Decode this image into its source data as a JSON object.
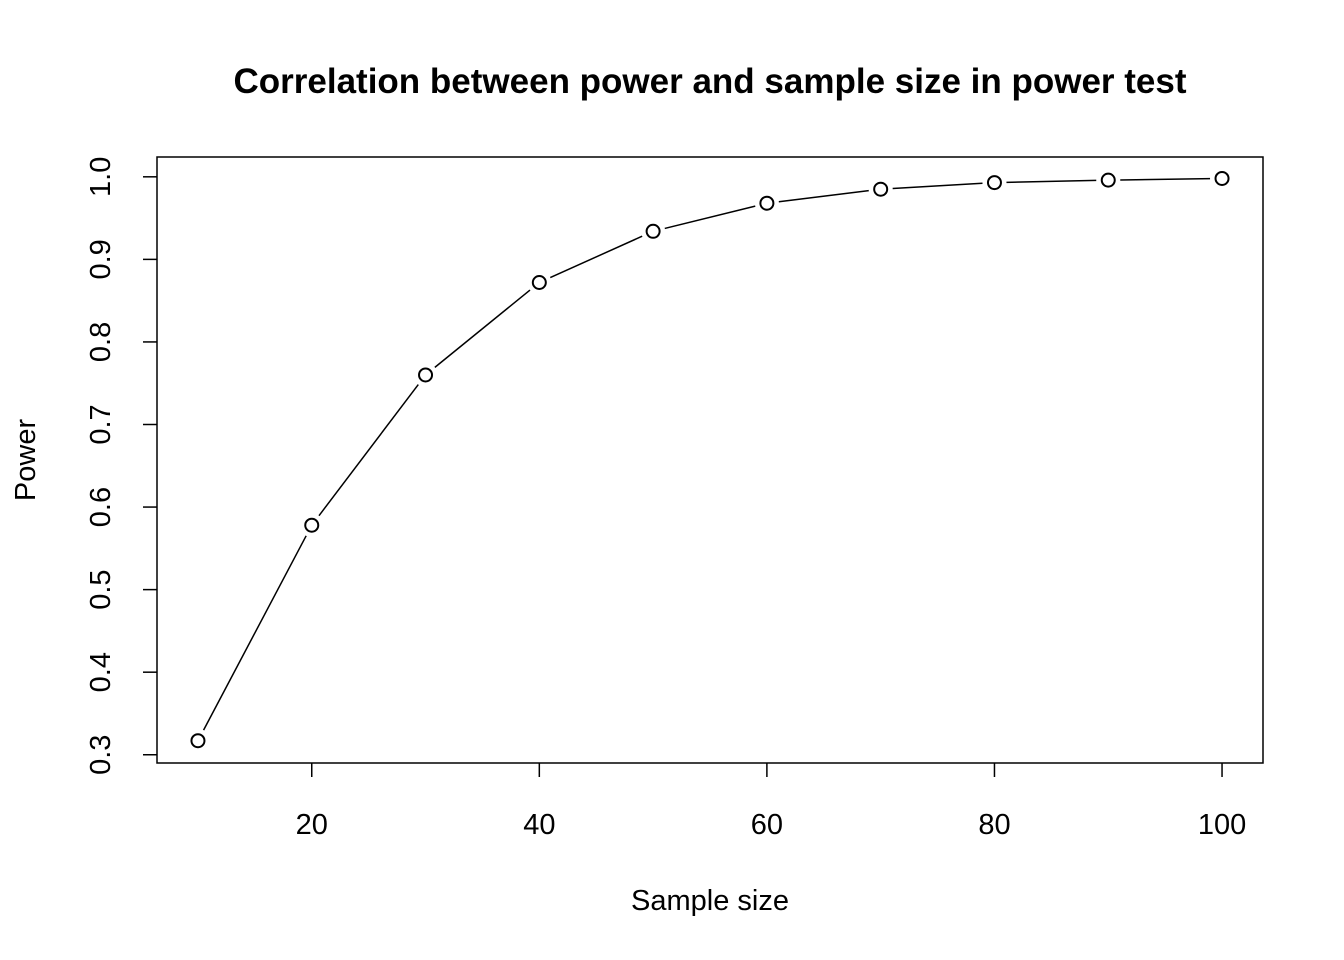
{
  "chart_data": {
    "type": "line",
    "title": "Correlation between power and sample size in power test",
    "xlabel": "Sample size",
    "ylabel": "Power",
    "x": [
      10,
      20,
      30,
      40,
      50,
      60,
      70,
      80,
      90,
      100
    ],
    "series": [
      {
        "values": [
          0.317,
          0.578,
          0.76,
          0.872,
          0.934,
          0.968,
          0.985,
          0.993,
          0.996,
          0.998
        ]
      }
    ],
    "xlim": [
      6.4,
      103.6
    ],
    "ylim": [
      0.29,
      1.024
    ],
    "xticks": [
      20,
      40,
      60,
      80,
      100
    ],
    "xtick_labels": [
      "20",
      "40",
      "60",
      "80",
      "100"
    ],
    "yticks": [
      0.3,
      0.4,
      0.5,
      0.6,
      0.7,
      0.8,
      0.9,
      1.0
    ],
    "ytick_labels": [
      "0.3",
      "0.4",
      "0.5",
      "0.6",
      "0.7",
      "0.8",
      "0.9",
      "1.0"
    ],
    "markers": "open-circle",
    "grid": false,
    "legend": "none",
    "colors": {
      "line": "#000000",
      "marker": "#000000",
      "background": "#ffffff"
    }
  }
}
